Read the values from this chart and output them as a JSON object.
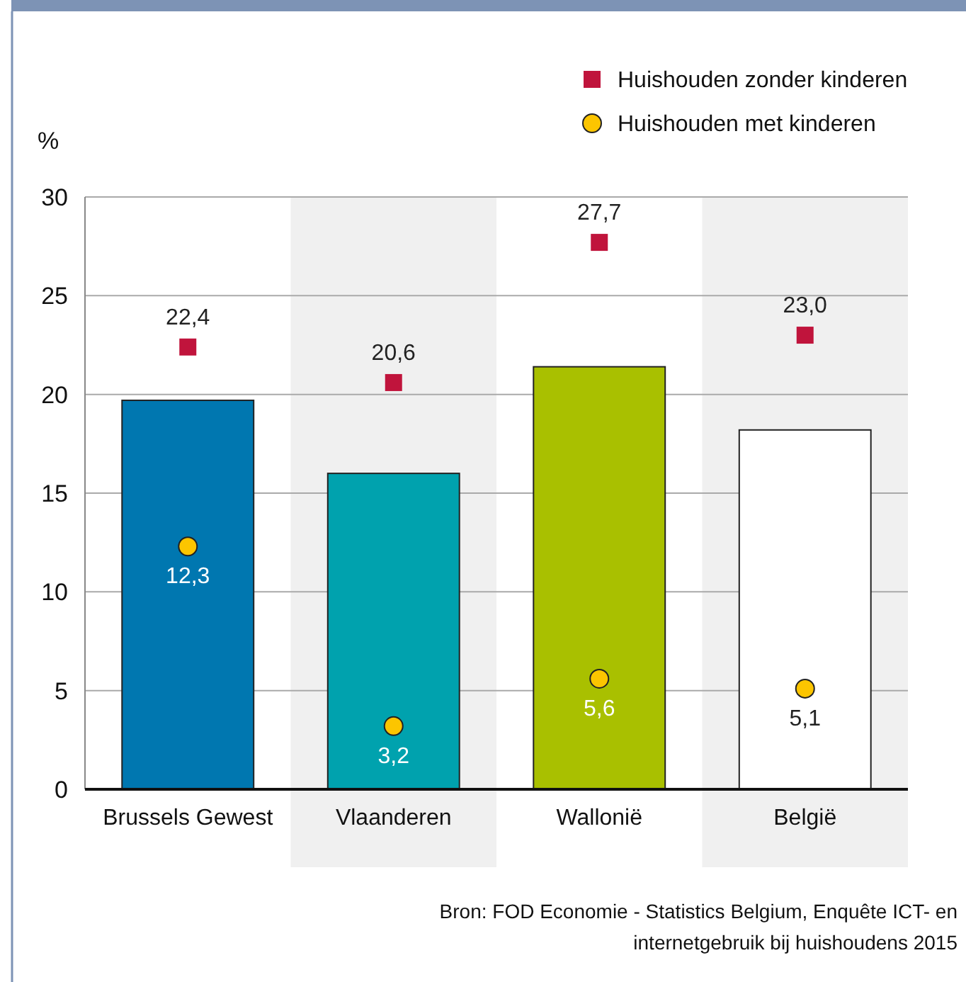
{
  "chart_data": {
    "type": "bar",
    "ylabel": "%",
    "categories": [
      "Brussels Gewest",
      "Vlaanderen",
      "Wallonië",
      "België"
    ],
    "ylim": [
      0,
      30
    ],
    "yticks": [
      0,
      5,
      10,
      15,
      20,
      25,
      30
    ],
    "grid": "y",
    "legend": "top right",
    "series": [
      {
        "colors": [
          "#0077b0",
          "#00a2ae",
          "#a9c000",
          "#ffffff"
        ],
        "values": [
          19.7,
          16.0,
          21.4,
          18.2
        ]
      },
      {
        "type": "scatter",
        "name": "Huishouden zonder kinderen",
        "color": "#c0143c",
        "marker": "square",
        "values": [
          22.4,
          20.6,
          27.7,
          23.0
        ],
        "value_labels": [
          "22,4",
          "20,6",
          "27,7",
          "23,0"
        ]
      },
      {
        "type": "scatter",
        "name": "Huishouden met kinderen",
        "color": "#fcc500",
        "marker": "circle",
        "values": [
          12.3,
          3.2,
          5.6,
          5.1
        ],
        "value_labels": [
          "12,3",
          "3,2",
          "5,6",
          "5,1"
        ]
      }
    ],
    "annotations": [
      "Bron: FOD Economie - Statistics Belgium, Enquête ICT- en internetgebruik bij huishoudens 2015"
    ]
  }
}
